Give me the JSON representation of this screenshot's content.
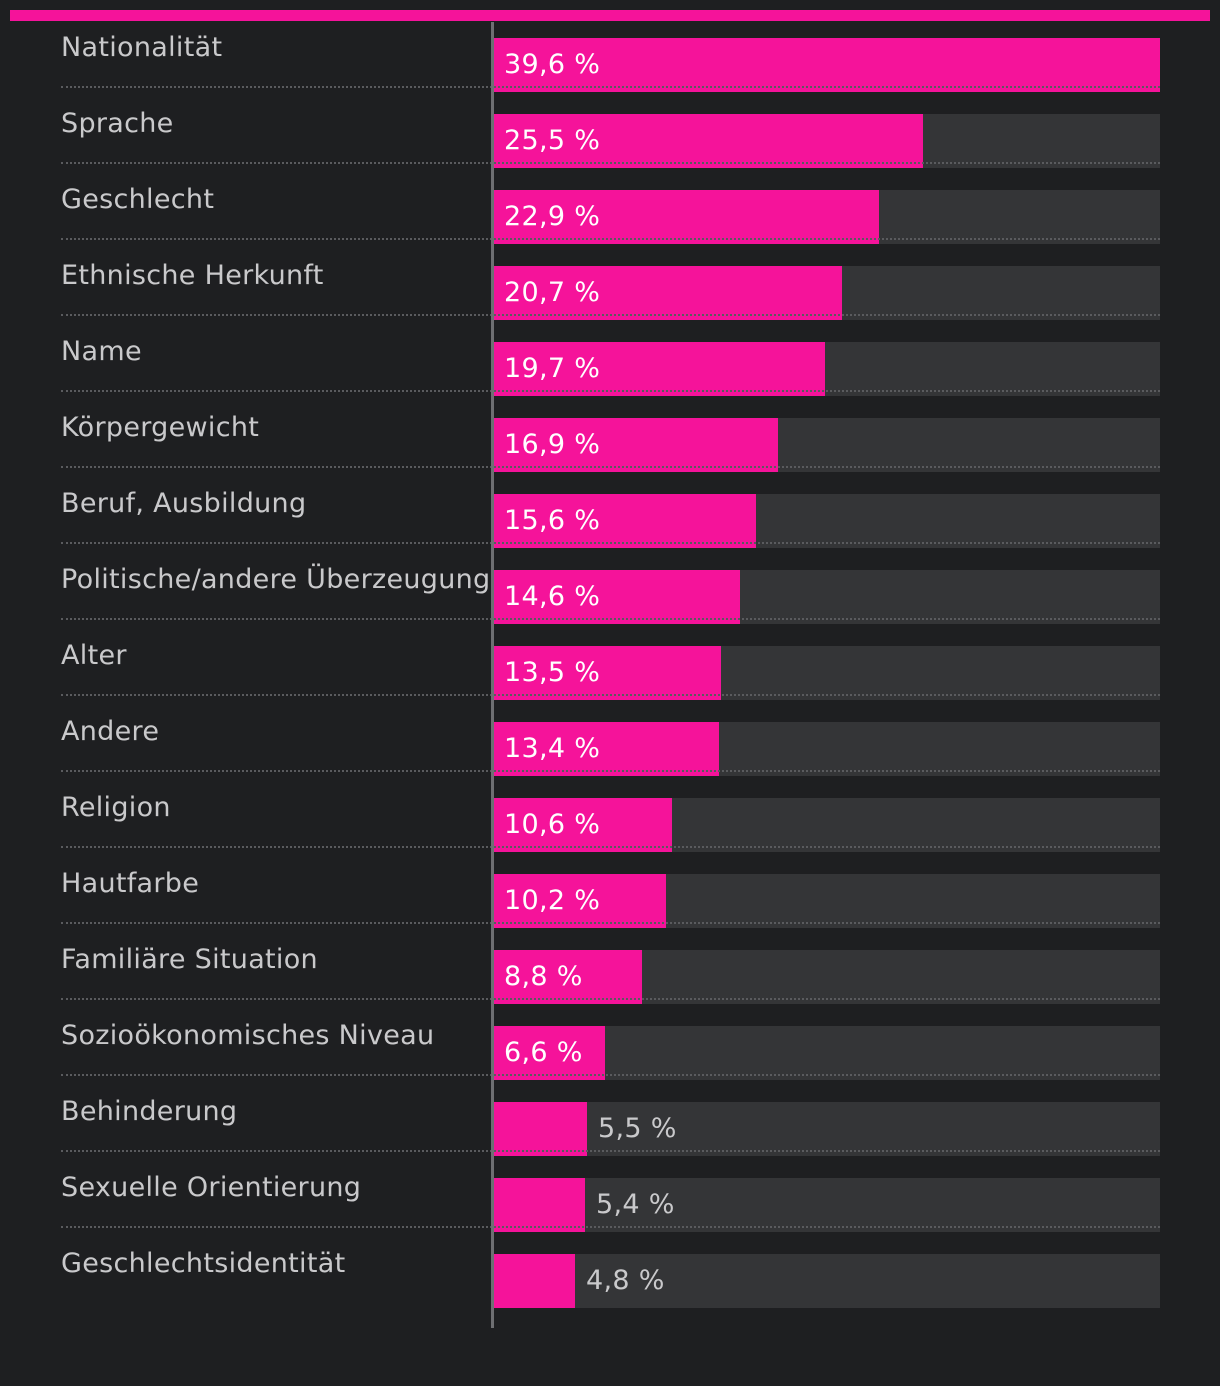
{
  "colors": {
    "background": "#1e1f21",
    "accent": "#f5139a",
    "track": "#343537",
    "label": "#c9c9cb",
    "value_inside": "#ffffff",
    "value_outside": "#c9c9cb"
  },
  "chart_data": {
    "type": "bar",
    "orientation": "horizontal",
    "title": "",
    "xlabel": "",
    "ylabel": "",
    "xlim": [
      0,
      39.6
    ],
    "grid": false,
    "categories": [
      "Nationalität",
      "Sprache",
      "Geschlecht",
      "Ethnische Herkunft",
      "Name",
      "Körpergewicht",
      "Beruf, Ausbildung",
      "Politische/andere Überzeugung",
      "Alter",
      "Andere",
      "Religion",
      "Hautfarbe",
      "Familiäre Situation",
      "Sozioökonomisches Niveau",
      "Behinderung",
      "Sexuelle Orientierung",
      "Geschlechtsidentität"
    ],
    "values": [
      39.6,
      25.5,
      22.9,
      20.7,
      19.7,
      16.9,
      15.6,
      14.6,
      13.5,
      13.4,
      10.6,
      10.2,
      8.8,
      6.6,
      5.5,
      5.4,
      4.8
    ],
    "value_labels": [
      "39,6 %",
      "25,5 %",
      "22,9 %",
      "20,7 %",
      "19,7 %",
      "16,9 %",
      "15,6 %",
      "14,6 %",
      "13,5 %",
      "13,4 %",
      "10,6 %",
      "10,2 %",
      "8,8 %",
      "6,6 %",
      "5,5 %",
      "5,4 %",
      "4,8 %"
    ],
    "unit": "%"
  }
}
